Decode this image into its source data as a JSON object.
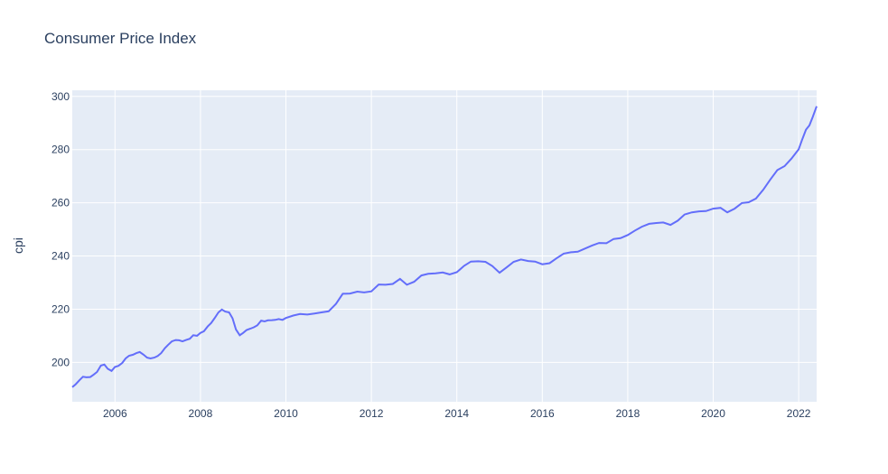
{
  "chart_data": {
    "type": "line",
    "title": "Consumer Price Index",
    "xlabel": "",
    "ylabel": "cpi",
    "grid": true,
    "legend": "none",
    "xlim": [
      2005.0,
      2022.42
    ],
    "ylim": [
      185.2,
      302.3
    ],
    "x_ticks": [
      "2006",
      "2008",
      "2010",
      "2012",
      "2014",
      "2016",
      "2018",
      "2020",
      "2022"
    ],
    "y_ticks": [
      "200",
      "220",
      "240",
      "260",
      "280",
      "300"
    ],
    "colors": {
      "line": "#636efa",
      "plot_bg": "#e5ecf6",
      "grid": "#ffffff",
      "text": "#2a3f5f"
    },
    "series": [
      {
        "x": [
          2005.0,
          2005.08,
          2005.17,
          2005.25,
          2005.33,
          2005.42,
          2005.5,
          2005.58,
          2005.67,
          2005.75,
          2005.83,
          2005.92,
          2006.0,
          2006.08,
          2006.17,
          2006.25,
          2006.33,
          2006.42,
          2006.5,
          2006.58,
          2006.67,
          2006.75,
          2006.83,
          2006.92,
          2007.0,
          2007.08,
          2007.17,
          2007.25,
          2007.33,
          2007.42,
          2007.5,
          2007.58,
          2007.67,
          2007.75,
          2007.83,
          2007.92,
          2008.0,
          2008.08,
          2008.17,
          2008.25,
          2008.33,
          2008.42,
          2008.5,
          2008.58,
          2008.67,
          2008.75,
          2008.83,
          2008.92,
          2009.0,
          2009.08,
          2009.17,
          2009.25,
          2009.33,
          2009.42,
          2009.5,
          2009.58,
          2009.67,
          2009.75,
          2009.83,
          2009.92,
          2010.0,
          2010.17,
          2010.33,
          2010.5,
          2010.67,
          2010.83,
          2011.0,
          2011.17,
          2011.33,
          2011.5,
          2011.67,
          2011.83,
          2012.0,
          2012.17,
          2012.33,
          2012.5,
          2012.67,
          2012.83,
          2013.0,
          2013.17,
          2013.33,
          2013.5,
          2013.67,
          2013.83,
          2014.0,
          2014.17,
          2014.33,
          2014.5,
          2014.67,
          2014.83,
          2015.0,
          2015.17,
          2015.33,
          2015.5,
          2015.67,
          2015.83,
          2016.0,
          2016.17,
          2016.33,
          2016.5,
          2016.67,
          2016.83,
          2017.0,
          2017.17,
          2017.33,
          2017.5,
          2017.67,
          2017.83,
          2018.0,
          2018.17,
          2018.33,
          2018.5,
          2018.67,
          2018.83,
          2019.0,
          2019.17,
          2019.33,
          2019.5,
          2019.67,
          2019.83,
          2020.0,
          2020.17,
          2020.33,
          2020.5,
          2020.67,
          2020.83,
          2021.0,
          2021.17,
          2021.33,
          2021.5,
          2021.67,
          2021.83,
          2022.0,
          2022.08,
          2022.17,
          2022.25,
          2022.33,
          2022.42
        ],
        "y": [
          190.7,
          191.8,
          193.3,
          194.6,
          194.4,
          194.5,
          195.4,
          196.4,
          198.8,
          199.2,
          197.6,
          196.8,
          198.3,
          198.7,
          199.8,
          201.5,
          202.5,
          202.9,
          203.5,
          203.9,
          202.9,
          201.8,
          201.5,
          201.8,
          202.4,
          203.5,
          205.4,
          206.7,
          207.9,
          208.4,
          208.3,
          207.9,
          208.5,
          208.9,
          210.2,
          210.0,
          211.1,
          211.7,
          213.5,
          214.8,
          216.6,
          218.8,
          219.9,
          219.1,
          218.8,
          216.6,
          212.4,
          210.2,
          211.1,
          212.2,
          212.7,
          213.2,
          213.9,
          215.7,
          215.4,
          215.8,
          215.9,
          216.0,
          216.3,
          216.0,
          216.7,
          217.6,
          218.2,
          218.0,
          218.4,
          218.8,
          219.2,
          222.0,
          225.8,
          225.9,
          226.6,
          226.3,
          226.7,
          229.3,
          229.2,
          229.5,
          231.4,
          229.2,
          230.3,
          232.7,
          233.3,
          233.5,
          233.8,
          233.1,
          233.9,
          236.3,
          237.9,
          238.0,
          237.8,
          236.2,
          233.7,
          235.8,
          237.8,
          238.7,
          238.1,
          237.9,
          236.9,
          237.3,
          239.1,
          240.9,
          241.4,
          241.6,
          242.8,
          244.0,
          244.9,
          244.8,
          246.4,
          246.7,
          247.9,
          249.6,
          251.0,
          252.1,
          252.4,
          252.6,
          251.7,
          253.3,
          255.6,
          256.4,
          256.8,
          256.9,
          257.8,
          258.1,
          256.4,
          257.8,
          259.9,
          260.2,
          261.6,
          264.9,
          268.6,
          272.3,
          273.8,
          276.6,
          280.1,
          283.7,
          287.5,
          289.1,
          292.3,
          296.3
        ]
      }
    ]
  }
}
